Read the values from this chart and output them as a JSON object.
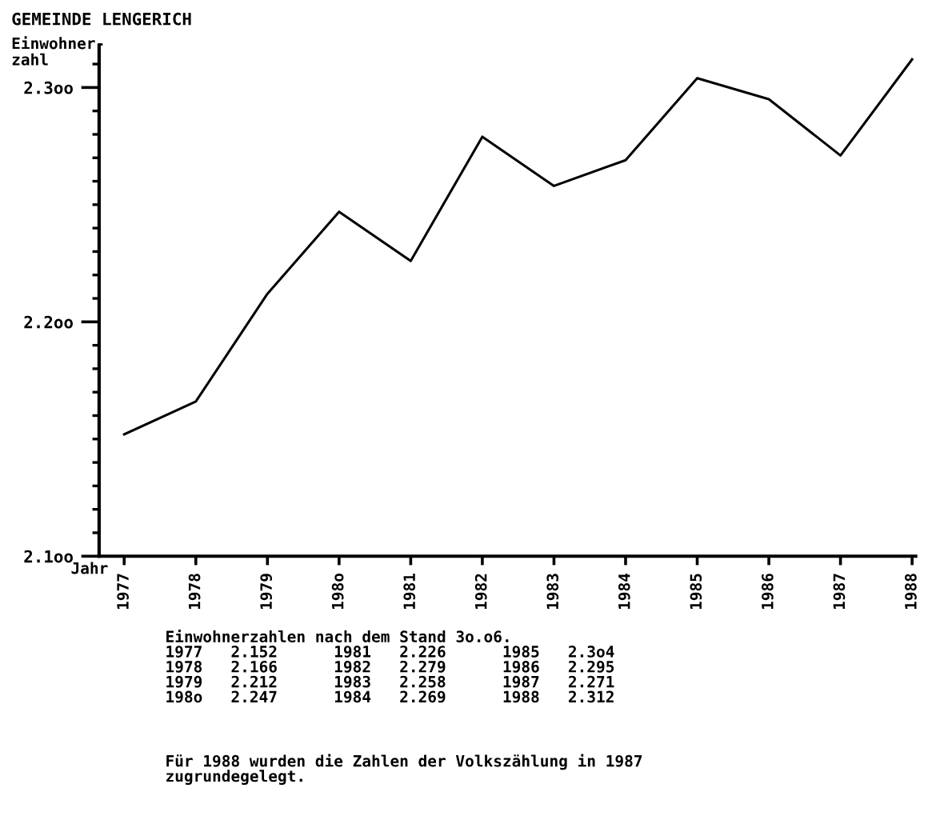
{
  "chart_data": {
    "type": "line",
    "title": "GEMEINDE LENGERICH",
    "ylabel": "Einwohner-\nzahl",
    "xlabel": "Jahr",
    "categories": [
      "1977",
      "1978",
      "1979",
      "198o",
      "1981",
      "1982",
      "1983",
      "1984",
      "1985",
      "1986",
      "1987",
      "1988"
    ],
    "series": [
      {
        "color": "#000000",
        "values": [
          2.152,
          2.166,
          2.212,
          2.247,
          2.226,
          2.279,
          2.258,
          2.269,
          2.304,
          2.295,
          2.271,
          2.312
        ]
      }
    ],
    "ylim": [
      2.1,
      2.318
    ],
    "yticks": [
      {
        "value": 2.1,
        "label": "2.1oo"
      },
      {
        "value": 2.11,
        "label": null
      },
      {
        "value": 2.12,
        "label": null
      },
      {
        "value": 2.13,
        "label": null
      },
      {
        "value": 2.14,
        "label": null
      },
      {
        "value": 2.15,
        "label": null
      },
      {
        "value": 2.16,
        "label": null
      },
      {
        "value": 2.17,
        "label": null
      },
      {
        "value": 2.18,
        "label": null
      },
      {
        "value": 2.19,
        "label": null
      },
      {
        "value": 2.2,
        "label": "2.2oo"
      },
      {
        "value": 2.21,
        "label": null
      },
      {
        "value": 2.22,
        "label": null
      },
      {
        "value": 2.23,
        "label": null
      },
      {
        "value": 2.24,
        "label": null
      },
      {
        "value": 2.25,
        "label": null
      },
      {
        "value": 2.26,
        "label": null
      },
      {
        "value": 2.27,
        "label": null
      },
      {
        "value": 2.28,
        "label": null
      },
      {
        "value": 2.29,
        "label": null
      },
      {
        "value": 2.3,
        "label": "2.3oo"
      },
      {
        "value": 2.31,
        "label": null
      }
    ],
    "grid": false,
    "legend": false,
    "marker": "none",
    "line_style": "solid",
    "annotations": [
      "Einwohnerzahlen nach dem Stand 3o.o6.\n1977   2.152      1981   2.226      1985   2.3o4\n1978   2.166      1982   2.279      1986   2.295\n1979   2.212      1983   2.258      1987   2.271\n198o   2.247      1984   2.269      1988   2.312",
      "Für 1988 wurden die Zahlen der Volkszählung in 1987\nzugrundegelegt."
    ]
  }
}
